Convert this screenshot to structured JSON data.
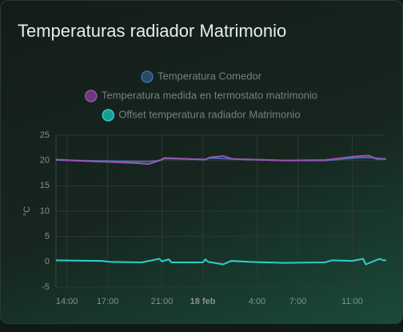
{
  "chart_data": {
    "type": "line",
    "title": "Temperaturas radiador Matrimonio",
    "y_label": "°C",
    "xlim": [
      13.2,
      37.5
    ],
    "ylim": [
      -5,
      25
    ],
    "yticks": [
      -5,
      0,
      5,
      10,
      15,
      20,
      25
    ],
    "xticks": [
      {
        "value": 14,
        "label": "14:00"
      },
      {
        "value": 17,
        "label": "17:00"
      },
      {
        "value": 21,
        "label": "21:00"
      },
      {
        "value": 24,
        "label": "18 feb"
      },
      {
        "value": 28,
        "label": "4:00"
      },
      {
        "value": 31,
        "label": "7:00"
      },
      {
        "value": 35,
        "label": "11:00"
      }
    ],
    "grid": true,
    "series": [
      {
        "name": "Temperatura Comedor",
        "color": "#3a6ea8",
        "legend_color": "#2c4a66",
        "x": [
          13.2,
          14.5,
          19.2,
          20.0,
          20.8,
          21.2,
          24.2,
          24.5,
          26.2,
          30,
          33,
          35.2,
          36.2,
          37.5
        ],
        "values": [
          20.1,
          20.0,
          19.8,
          19.8,
          20.0,
          20.4,
          20.2,
          20.5,
          20.3,
          20.0,
          20.0,
          20.5,
          20.6,
          20.3
        ]
      },
      {
        "name": "Temperatura medida en termostato matrimonio",
        "color": "#9a55b0",
        "legend_color": "#6a3a78",
        "x": [
          13.2,
          14.5,
          19.2,
          20.0,
          20.8,
          21.2,
          24.2,
          24.5,
          25.5,
          26.2,
          30,
          33,
          35.2,
          36.2,
          36.8,
          37.5
        ],
        "values": [
          20.2,
          20.0,
          19.5,
          19.3,
          20.0,
          20.5,
          20.2,
          20.6,
          20.9,
          20.3,
          20.0,
          20.1,
          20.8,
          21.0,
          20.3,
          20.3
        ]
      },
      {
        "name": "Offset temperatura radiador Matrimonio",
        "color": "#2ad0cc",
        "legend_color": "#1a9a96",
        "x": [
          13.2,
          16.5,
          17.2,
          19.5,
          20.8,
          21.0,
          21.5,
          21.7,
          24.0,
          24.2,
          24.4,
          25.5,
          26.1,
          27.5,
          30,
          33,
          33.5,
          35,
          35.8,
          36,
          37,
          37.3,
          37.5
        ],
        "values": [
          0.3,
          0.2,
          0.0,
          -0.1,
          0.6,
          0.1,
          0.5,
          -0.1,
          -0.1,
          0.5,
          0.0,
          -0.5,
          0.2,
          0.0,
          -0.2,
          -0.1,
          0.3,
          0.2,
          0.6,
          -0.5,
          0.6,
          0.3,
          0.3
        ]
      }
    ]
  }
}
